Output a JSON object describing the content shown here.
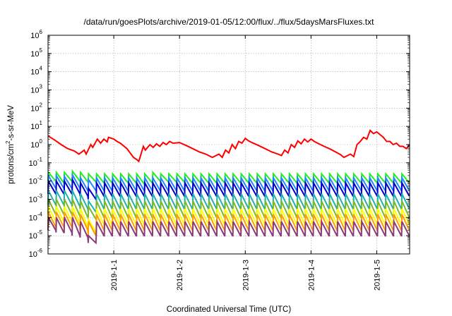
{
  "chart_data": {
    "type": "line",
    "title": "/data/run/goesPlots/archive/2019-01-05/12:00/flux/../flux/5daysMarsFluxes.txt",
    "xlabel": "Coordinated Universal Time (UTC)",
    "ylabel": {
      "prefix": "protons/cm",
      "sup": "2",
      "suffix": "-s-sr-MeV"
    },
    "x_unit": "days",
    "xlim": [
      0.0,
      5.5
    ],
    "ylim": [
      1e-06,
      1000000.0
    ],
    "y_scale": "log",
    "grid": true,
    "legend": "none",
    "x_ticks": [
      {
        "x": 1.0,
        "label": "2019-1-1"
      },
      {
        "x": 2.0,
        "label": "2019-1-2"
      },
      {
        "x": 3.0,
        "label": "2019-1-3"
      },
      {
        "x": 4.0,
        "label": "2019-1-4"
      },
      {
        "x": 5.0,
        "label": "2019-1-5"
      }
    ],
    "y_ticks": [
      {
        "value": 1e-06,
        "base": "10",
        "exp": "-6"
      },
      {
        "value": 1e-05,
        "base": "10",
        "exp": "-5"
      },
      {
        "value": 0.0001,
        "base": "10",
        "exp": "-4"
      },
      {
        "value": 0.001,
        "base": "10",
        "exp": "-3"
      },
      {
        "value": 0.01,
        "base": "10",
        "exp": "-2"
      },
      {
        "value": 0.1,
        "base": "10",
        "exp": "-1"
      },
      {
        "value": 1.0,
        "base": "10",
        "exp": "0"
      },
      {
        "value": 10.0,
        "base": "10",
        "exp": "1"
      },
      {
        "value": 100.0,
        "base": "10",
        "exp": "2"
      },
      {
        "value": 1000.0,
        "base": "10",
        "exp": "3"
      },
      {
        "value": 10000.0,
        "base": "10",
        "exp": "4"
      },
      {
        "value": 100000.0,
        "base": "10",
        "exp": "5"
      },
      {
        "value": 1000000.0,
        "base": "10",
        "exp": "6"
      }
    ],
    "series": [
      {
        "color": "#ff0000",
        "x": [
          0.0,
          0.1,
          0.2,
          0.3,
          0.4,
          0.47,
          0.55,
          0.58,
          0.65,
          0.68,
          0.75,
          0.8,
          0.85,
          0.9,
          0.92,
          1.0,
          1.05,
          1.1,
          1.2,
          1.3,
          1.35,
          1.38,
          1.45,
          1.48,
          1.55,
          1.6,
          1.65,
          1.7,
          1.75,
          1.8,
          1.85,
          1.9,
          2.0,
          2.1,
          2.2,
          2.3,
          2.4,
          2.5,
          2.6,
          2.65,
          2.7,
          2.75,
          2.8,
          2.85,
          2.9,
          2.95,
          3.0,
          3.05,
          3.1,
          3.2,
          3.3,
          3.4,
          3.5,
          3.55,
          3.6,
          3.65,
          3.7,
          3.75,
          3.8,
          3.85,
          3.9,
          3.95,
          4.0,
          4.05,
          4.1,
          4.2,
          4.3,
          4.4,
          4.45,
          4.5,
          4.6,
          4.65,
          4.7,
          4.75,
          4.8,
          4.85,
          4.9,
          4.95,
          5.0,
          5.05,
          5.1,
          5.15,
          5.2,
          5.25,
          5.3,
          5.35,
          5.4,
          5.45,
          5.5
        ],
        "values": [
          3.0,
          1.8,
          1.0,
          0.6,
          0.45,
          0.3,
          0.5,
          0.3,
          1.0,
          0.7,
          2.0,
          1.2,
          2.0,
          1.4,
          2.5,
          2.0,
          1.5,
          1.2,
          0.6,
          0.2,
          0.15,
          0.12,
          0.8,
          0.5,
          1.0,
          0.7,
          1.1,
          0.8,
          1.3,
          1.0,
          1.5,
          1.2,
          1.3,
          0.9,
          0.6,
          0.4,
          0.3,
          0.2,
          0.3,
          0.2,
          0.5,
          0.35,
          1.0,
          0.6,
          1.5,
          1.2,
          2.2,
          1.6,
          1.3,
          0.9,
          0.6,
          0.4,
          0.3,
          0.25,
          0.5,
          0.35,
          1.0,
          0.7,
          1.6,
          1.1,
          2.0,
          1.4,
          2.0,
          1.5,
          1.2,
          0.8,
          0.55,
          0.35,
          0.28,
          0.2,
          0.3,
          0.22,
          1.0,
          1.5,
          2.5,
          2.0,
          6.0,
          4.0,
          5.0,
          3.5,
          2.5,
          1.5,
          1.5,
          1.0,
          1.2,
          0.8,
          0.8,
          0.6,
          1.0
        ]
      },
      {
        "color": "#22ee22",
        "peaks": [
          0.03,
          0.03,
          0.03,
          0.035,
          0.03,
          0.025,
          0.025,
          0.025,
          0.025,
          0.025,
          0.025,
          0.025,
          0.025,
          0.03,
          0.025,
          0.025,
          0.025,
          0.025,
          0.025,
          0.025,
          0.025,
          0.025,
          0.025,
          0.025,
          0.025,
          0.025,
          0.025,
          0.025,
          0.025,
          0.025,
          0.025,
          0.025,
          0.025,
          0.025,
          0.025,
          0.025,
          0.025,
          0.025,
          0.025,
          0.025,
          0.025,
          0.025,
          0.025,
          0.025,
          0.025
        ],
        "troughs": [
          0.01,
          0.008,
          0.01,
          0.01,
          0.009,
          0.009,
          0.008,
          0.008,
          0.008,
          0.008,
          0.008,
          0.007,
          0.008,
          0.01,
          0.009,
          0.009,
          0.009,
          0.008,
          0.008,
          0.008,
          0.008,
          0.008,
          0.008,
          0.008,
          0.008,
          0.008,
          0.008,
          0.008,
          0.008,
          0.008,
          0.008,
          0.008,
          0.008,
          0.008,
          0.008,
          0.008,
          0.008,
          0.008,
          0.008,
          0.008,
          0.008,
          0.008,
          0.008,
          0.008,
          0.008
        ]
      },
      {
        "color": "#1e88ff",
        "peaks": [
          0.02,
          0.02,
          0.018,
          0.022,
          0.015,
          0.012,
          0.015,
          0.015,
          0.015,
          0.015,
          0.015,
          0.015,
          0.015,
          0.015,
          0.015,
          0.015,
          0.015,
          0.015,
          0.015,
          0.015,
          0.015,
          0.015,
          0.015,
          0.015,
          0.015,
          0.015,
          0.015,
          0.015,
          0.015,
          0.015,
          0.015,
          0.015,
          0.015,
          0.015,
          0.015,
          0.015,
          0.015,
          0.015,
          0.015,
          0.015,
          0.015,
          0.015,
          0.015,
          0.015,
          0.015
        ],
        "troughs": [
          0.004,
          0.004,
          0.004,
          0.004,
          0.003,
          0.003,
          0.003,
          0.003,
          0.003,
          0.003,
          0.003,
          0.003,
          0.003,
          0.003,
          0.003,
          0.003,
          0.003,
          0.003,
          0.003,
          0.003,
          0.003,
          0.003,
          0.003,
          0.003,
          0.003,
          0.003,
          0.003,
          0.003,
          0.003,
          0.003,
          0.003,
          0.003,
          0.003,
          0.003,
          0.003,
          0.003,
          0.003,
          0.003,
          0.003,
          0.003,
          0.003,
          0.003,
          0.003,
          0.003,
          0.003
        ]
      },
      {
        "color": "#0000cc",
        "peaks": [
          0.01,
          0.01,
          0.01,
          0.012,
          0.008,
          0.004,
          0.008,
          0.008,
          0.008,
          0.008,
          0.008,
          0.008,
          0.008,
          0.008,
          0.008,
          0.008,
          0.008,
          0.008,
          0.008,
          0.008,
          0.008,
          0.008,
          0.008,
          0.008,
          0.008,
          0.008,
          0.008,
          0.008,
          0.008,
          0.008,
          0.008,
          0.008,
          0.008,
          0.008,
          0.008,
          0.008,
          0.008,
          0.008,
          0.008,
          0.008,
          0.008,
          0.008,
          0.008,
          0.008,
          0.008
        ],
        "troughs": [
          0.002,
          0.002,
          0.002,
          0.002,
          0.0015,
          0.001,
          0.0015,
          0.0015,
          0.0015,
          0.0015,
          0.0015,
          0.0015,
          0.0015,
          0.0015,
          0.0015,
          0.0015,
          0.0015,
          0.0015,
          0.0015,
          0.0015,
          0.0015,
          0.0015,
          0.0015,
          0.0015,
          0.0015,
          0.0015,
          0.0015,
          0.0015,
          0.0015,
          0.0015,
          0.0015,
          0.0015,
          0.0015,
          0.0015,
          0.0015,
          0.0015,
          0.0015,
          0.0015,
          0.0015,
          0.0015,
          0.0015,
          0.0015,
          0.0015,
          0.0015,
          0.0015
        ]
      },
      {
        "color": "#20b2aa",
        "peaks": [
          0.003,
          0.003,
          0.003,
          0.003,
          0.002,
          0.0008,
          0.002,
          0.002,
          0.002,
          0.002,
          0.002,
          0.002,
          0.002,
          0.002,
          0.002,
          0.002,
          0.002,
          0.002,
          0.002,
          0.002,
          0.002,
          0.002,
          0.002,
          0.002,
          0.002,
          0.002,
          0.002,
          0.002,
          0.002,
          0.002,
          0.002,
          0.002,
          0.002,
          0.002,
          0.002,
          0.002,
          0.002,
          0.002,
          0.002,
          0.002,
          0.002,
          0.002,
          0.002,
          0.002,
          0.002
        ],
        "troughs": [
          0.0005,
          0.0005,
          0.0005,
          0.0004,
          0.0003,
          0.0002,
          0.0003,
          0.0003,
          0.0003,
          0.0003,
          0.0003,
          0.0003,
          0.0003,
          0.0003,
          0.0003,
          0.0003,
          0.0003,
          0.0003,
          0.0003,
          0.0003,
          0.0003,
          0.0003,
          0.0003,
          0.0003,
          0.0003,
          0.0003,
          0.0003,
          0.0003,
          0.0003,
          0.0003,
          0.0003,
          0.0003,
          0.0003,
          0.0003,
          0.0003,
          0.0003,
          0.0003,
          0.0003,
          0.0003,
          0.0003,
          0.0003,
          0.0003,
          0.0003,
          0.0003,
          0.0003
        ]
      },
      {
        "color": "#7ab828",
        "peaks": [
          0.001,
          0.001,
          0.001,
          0.001,
          0.0008,
          0.0004,
          0.0008,
          0.0008,
          0.0008,
          0.0008,
          0.0008,
          0.0008,
          0.0008,
          0.0008,
          0.0008,
          0.0008,
          0.0008,
          0.0008,
          0.0008,
          0.0008,
          0.0008,
          0.0008,
          0.0008,
          0.0008,
          0.0008,
          0.0008,
          0.0008,
          0.0008,
          0.0008,
          0.0008,
          0.0008,
          0.0008,
          0.0008,
          0.0008,
          0.0008,
          0.0008,
          0.0008,
          0.0008,
          0.0008,
          0.0008,
          0.0008,
          0.0008,
          0.0008,
          0.0008,
          0.0008
        ],
        "troughs": [
          0.00015,
          0.00015,
          0.00015,
          0.00012,
          0.0001,
          8e-05,
          0.0001,
          0.0001,
          0.0001,
          0.0001,
          0.0001,
          0.0001,
          0.0001,
          0.0001,
          0.0001,
          0.0001,
          0.0001,
          0.0001,
          0.0001,
          0.0001,
          0.0001,
          0.0001,
          0.0001,
          0.0001,
          0.0001,
          0.0001,
          0.0001,
          0.0001,
          0.0001,
          0.0001,
          0.0001,
          0.0001,
          0.0001,
          0.0001,
          0.0001,
          0.0001,
          0.0001,
          0.0001,
          0.0001,
          0.0001,
          0.0001,
          0.0001,
          0.0001,
          0.0001,
          0.0001
        ]
      },
      {
        "color": "#ffff00",
        "peaks": [
          0.0004,
          0.0004,
          0.0004,
          0.0004,
          0.0003,
          8e-05,
          0.0003,
          0.0003,
          0.0003,
          0.0003,
          0.0003,
          0.0003,
          0.0003,
          0.0003,
          0.0003,
          0.0003,
          0.0003,
          0.0003,
          0.0003,
          0.0003,
          0.0003,
          0.0003,
          0.0003,
          0.0003,
          0.0003,
          0.0003,
          0.0003,
          0.0003,
          0.0003,
          0.0003,
          0.0003,
          0.0003,
          0.0003,
          0.0003,
          0.0003,
          0.0003,
          0.0003,
          0.0003,
          0.0003,
          0.0003,
          0.0003,
          0.0003,
          0.0003,
          0.0003,
          0.0003
        ],
        "troughs": [
          6e-05,
          6e-05,
          6e-05,
          5e-05,
          3e-05,
          1.5e-05,
          4e-05,
          4e-05,
          4e-05,
          4e-05,
          4e-05,
          4e-05,
          4e-05,
          4e-05,
          4e-05,
          4e-05,
          4e-05,
          4e-05,
          4e-05,
          4e-05,
          4e-05,
          4e-05,
          4e-05,
          4e-05,
          4e-05,
          4e-05,
          4e-05,
          4e-05,
          4e-05,
          4e-05,
          4e-05,
          4e-05,
          4e-05,
          4e-05,
          4e-05,
          4e-05,
          4e-05,
          4e-05,
          4e-05,
          4e-05,
          4e-05,
          4e-05,
          4e-05,
          4e-05,
          4e-05
        ]
      },
      {
        "color": "#ff9e00",
        "peaks": [
          0.0002,
          0.0002,
          0.0002,
          0.0002,
          0.00015,
          6e-05,
          0.00015,
          0.00015,
          0.00015,
          0.00015,
          0.00015,
          0.00015,
          0.00015,
          0.00015,
          0.00015,
          0.00015,
          0.00015,
          0.00015,
          0.00015,
          0.00015,
          0.00015,
          0.00015,
          0.00015,
          0.00015,
          0.00015,
          0.00015,
          0.00015,
          0.00015,
          0.00015,
          0.00015,
          0.00015,
          0.00015,
          0.00015,
          0.00015,
          0.00015,
          0.00015,
          0.00015,
          0.00015,
          0.00015,
          0.00015,
          0.00015,
          0.00015,
          0.00015,
          0.00015,
          0.00015
        ],
        "troughs": [
          3e-05,
          3e-05,
          3e-05,
          3e-05,
          2e-05,
          1e-05,
          2e-05,
          2e-05,
          2e-05,
          2e-05,
          2e-05,
          2e-05,
          2e-05,
          2e-05,
          2e-05,
          2e-05,
          2e-05,
          2e-05,
          2e-05,
          2e-05,
          2e-05,
          2e-05,
          2e-05,
          2e-05,
          2e-05,
          2e-05,
          2e-05,
          2e-05,
          2e-05,
          2e-05,
          2e-05,
          2e-05,
          2e-05,
          2e-05,
          2e-05,
          2e-05,
          2e-05,
          2e-05,
          2e-05,
          2e-05,
          2e-05,
          2e-05,
          2e-05,
          2e-05,
          2e-05
        ]
      },
      {
        "color": "#8e3a78",
        "peaks": [
          0.0001,
          0.0001,
          0.0001,
          0.0001,
          6e-05,
          1e-05,
          6e-05,
          6e-05,
          6e-05,
          6e-05,
          6e-05,
          6e-05,
          6e-05,
          6e-05,
          6e-05,
          6e-05,
          6e-05,
          6e-05,
          6e-05,
          6e-05,
          6e-05,
          6e-05,
          6e-05,
          6e-05,
          6e-05,
          6e-05,
          6e-05,
          6e-05,
          6e-05,
          6e-05,
          6e-05,
          6e-05,
          6e-05,
          6e-05,
          6e-05,
          6e-05,
          6e-05,
          6e-05,
          6e-05,
          6e-05,
          6e-05,
          6e-05,
          6e-05,
          6e-05,
          6e-05
        ],
        "troughs": [
          2e-05,
          1.5e-05,
          1.5e-05,
          1e-05,
          8e-06,
          4e-06,
          1e-05,
          1e-05,
          1e-05,
          1e-05,
          1e-05,
          1e-05,
          1e-05,
          1e-05,
          1e-05,
          1e-05,
          1e-05,
          1e-05,
          1e-05,
          1e-05,
          1e-05,
          1e-05,
          1e-05,
          1e-05,
          1e-05,
          1e-05,
          1e-05,
          1e-05,
          1e-05,
          1e-05,
          1e-05,
          1e-05,
          1e-05,
          1e-05,
          1e-05,
          1e-05,
          1e-05,
          1e-05,
          1e-05,
          1e-05,
          1e-05,
          1e-05,
          1e-05,
          1e-05,
          1e-05
        ]
      }
    ]
  }
}
